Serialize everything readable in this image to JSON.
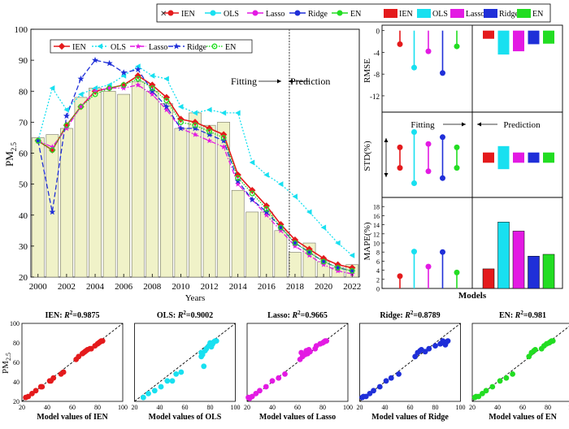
{
  "colors": {
    "IEN": "#e41a1c",
    "OLS": "#18e0f0",
    "Lasso": "#e31ae3",
    "Ridge": "#1f2fd8",
    "EN": "#22dd22",
    "bar_fill": "#f0f2c8",
    "bar_stroke": "#777766",
    "vline": "#555555"
  },
  "top_legend": {
    "line_labels": [
      "IEN",
      "OLS",
      "Lasso",
      "Ridge",
      "EN"
    ],
    "bar_labels": [
      "IEN",
      "OLS",
      "Lasso",
      "Ridge",
      "EN"
    ],
    "close_icon": "close-icon"
  },
  "chart_data": [
    {
      "id": "main",
      "type": "line",
      "xlabel": "Years",
      "ylabel_main": "PM",
      "ylabel_sub": "2.5",
      "xlim": [
        1999.5,
        2022.5
      ],
      "ylim": [
        20,
        100
      ],
      "yticks": [
        20,
        30,
        40,
        50,
        60,
        70,
        80,
        90,
        100
      ],
      "xticks": [
        2000,
        2002,
        2004,
        2006,
        2008,
        2010,
        2012,
        2014,
        2016,
        2018,
        2020,
        2022
      ],
      "split_year": 2017.6,
      "fitting_label": "Fitting",
      "prediction_label": "Prediction",
      "legend": [
        "IEN",
        "OLS",
        "Lasso",
        "Ridge",
        "EN"
      ],
      "x": [
        2000,
        2001,
        2002,
        2003,
        2004,
        2005,
        2006,
        2007,
        2008,
        2009,
        2010,
        2011,
        2012,
        2013,
        2014,
        2015,
        2016,
        2017,
        2018,
        2019,
        2020,
        2021,
        2022
      ],
      "bars": [
        65,
        66,
        68,
        78,
        81,
        80,
        79,
        83,
        80,
        76,
        68,
        73,
        69,
        70,
        48,
        41,
        41,
        35,
        28,
        31,
        25,
        23,
        24
      ],
      "series": [
        {
          "name": "IEN",
          "values": [
            64,
            61,
            69,
            75,
            80,
            81,
            82,
            85,
            82,
            78,
            71,
            70,
            68,
            66,
            53,
            48,
            43,
            37,
            32,
            29,
            26,
            24,
            23
          ]
        },
        {
          "name": "OLS",
          "values": [
            64,
            81,
            74,
            79,
            81,
            82,
            85,
            88,
            85,
            84,
            75,
            73,
            74,
            73,
            73,
            57,
            53,
            50,
            46,
            41,
            36,
            31,
            27
          ]
        },
        {
          "name": "Lasso",
          "values": [
            64,
            62,
            68,
            75,
            80,
            81,
            81,
            82,
            79,
            74,
            68,
            66,
            64,
            62,
            50,
            45,
            40,
            35,
            30,
            27,
            24,
            22,
            21
          ]
        },
        {
          "name": "Ridge",
          "values": [
            64,
            41,
            72,
            84,
            90,
            89,
            86,
            87,
            80,
            75,
            68,
            68,
            66,
            64,
            51,
            45,
            41,
            36,
            31,
            28,
            25,
            23,
            22
          ]
        },
        {
          "name": "EN",
          "values": [
            64,
            61,
            69,
            75,
            79,
            81,
            82,
            84,
            81,
            77,
            70,
            69,
            67,
            65,
            52,
            47,
            42,
            36,
            31,
            28,
            25,
            23,
            22
          ]
        }
      ]
    },
    {
      "id": "rmse",
      "type": "bar",
      "ylabel": "RMSE",
      "ylim": [
        -15,
        1
      ],
      "yticks": [
        -12,
        -8,
        -4,
        0
      ],
      "fitting_stems": [
        {
          "name": "IEN",
          "value": -2.5
        },
        {
          "name": "OLS",
          "value": -6.8
        },
        {
          "name": "Lasso",
          "value": -3.8
        },
        {
          "name": "Ridge",
          "value": -7.8
        },
        {
          "name": "EN",
          "value": -2.9
        }
      ],
      "prediction_bars": [
        {
          "name": "IEN",
          "value": -1.5
        },
        {
          "name": "OLS",
          "value": -4.4
        },
        {
          "name": "Lasso",
          "value": -3.8
        },
        {
          "name": "Ridge",
          "value": -2.5
        },
        {
          "name": "EN",
          "value": -2.4
        }
      ]
    },
    {
      "id": "std",
      "type": "bar",
      "ylabel": "STD(%)",
      "fitting_label": "Fitting",
      "prediction_label": "Prediction",
      "fitting_ranges": [
        {
          "name": "IEN",
          "low": -0.6,
          "high": 0.6
        },
        {
          "name": "OLS",
          "low": -1.5,
          "high": 1.5
        },
        {
          "name": "Lasso",
          "low": -0.8,
          "high": 0.8
        },
        {
          "name": "Ridge",
          "low": -1.2,
          "high": 1.2
        },
        {
          "name": "EN",
          "low": -0.6,
          "high": 0.6
        }
      ],
      "prediction_ranges": [
        {
          "name": "IEN",
          "low": -0.4,
          "high": 0.4
        },
        {
          "name": "OLS",
          "low": -0.9,
          "high": 0.9
        },
        {
          "name": "Lasso",
          "low": -0.4,
          "high": 0.4
        },
        {
          "name": "Ridge",
          "low": -0.4,
          "high": 0.4
        },
        {
          "name": "EN",
          "low": -0.4,
          "high": 0.4
        }
      ]
    },
    {
      "id": "mape",
      "type": "bar",
      "ylabel": "MAPE(%)",
      "xlabel": "Models",
      "ylim": [
        0,
        20
      ],
      "yticks": [
        0,
        2,
        4,
        6,
        8,
        10,
        12,
        14,
        16,
        18
      ],
      "fitting_stems": [
        {
          "name": "IEN",
          "value": 2.7
        },
        {
          "name": "OLS",
          "value": 8.1
        },
        {
          "name": "Lasso",
          "value": 4.8
        },
        {
          "name": "Ridge",
          "value": 8.0
        },
        {
          "name": "EN",
          "value": 3.5
        }
      ],
      "prediction_bars": [
        {
          "name": "IEN",
          "value": 4.3
        },
        {
          "name": "OLS",
          "value": 14.6
        },
        {
          "name": "Lasso",
          "value": 12.6
        },
        {
          "name": "Ridge",
          "value": 7.1
        },
        {
          "name": "EN",
          "value": 7.5
        }
      ]
    },
    {
      "id": "scatter",
      "type": "scatter",
      "ylabel_main": "PM",
      "ylabel_sub": "2.5",
      "xlim": [
        20,
        100
      ],
      "ylim": [
        20,
        100
      ],
      "xticks": [
        20,
        40,
        60,
        80,
        100
      ],
      "yticks": [
        20,
        40,
        60,
        80,
        100
      ],
      "panels": [
        {
          "model": "IEN",
          "prefix": "IEN: ",
          "r2_value": "=0.9875",
          "xlabel": "Model values of IEN",
          "x": [
            23,
            25,
            28,
            31,
            35,
            36,
            42,
            43,
            45,
            51,
            53,
            63,
            65,
            68,
            69,
            70,
            71,
            72,
            74,
            75,
            78,
            80,
            81,
            82,
            83,
            84
          ],
          "y": [
            24,
            25,
            28,
            31,
            35,
            35,
            41,
            41,
            44,
            48,
            50,
            63,
            66,
            69,
            70,
            71,
            72,
            73,
            74,
            74,
            77,
            79,
            80,
            81,
            82,
            82
          ]
        },
        {
          "model": "OLS",
          "prefix": "OLS: ",
          "r2_value": "=0.9002",
          "xlabel": "Model values of OLS",
          "x": [
            27,
            31,
            36,
            41,
            46,
            50,
            53,
            57,
            73,
            73,
            74,
            75,
            76,
            77,
            79,
            80,
            81,
            82,
            83,
            84,
            85
          ],
          "y": [
            24,
            28,
            31,
            35,
            41,
            41,
            48,
            50,
            70,
            66,
            68,
            56,
            72,
            74,
            77,
            80,
            76,
            79,
            81,
            82,
            82
          ]
        },
        {
          "model": "Lasso",
          "prefix": "Lasso: ",
          "r2_value": "=0.9665",
          "xlabel": "Model values of Lasso",
          "x": [
            21,
            22,
            24,
            27,
            30,
            35,
            40,
            45,
            50,
            62,
            63,
            64,
            66,
            67,
            68,
            69,
            70,
            74,
            75,
            78,
            80,
            81,
            82,
            83
          ],
          "y": [
            24,
            23,
            25,
            28,
            31,
            35,
            41,
            44,
            48,
            63,
            70,
            66,
            68,
            72,
            69,
            73,
            71,
            74,
            77,
            79,
            80,
            81,
            82,
            82
          ]
        },
        {
          "model": "Ridge",
          "prefix": "Ridge: ",
          "r2_value": "=0.8789",
          "xlabel": "Model values of Ridge",
          "x": [
            22,
            23,
            25,
            28,
            31,
            36,
            41,
            45,
            51,
            64,
            66,
            68,
            69,
            72,
            75,
            80,
            84,
            86,
            87,
            88,
            89,
            90
          ],
          "y": [
            24,
            25,
            25,
            28,
            31,
            35,
            41,
            44,
            48,
            66,
            70,
            72,
            73,
            71,
            74,
            77,
            79,
            82,
            80,
            78,
            81,
            82
          ]
        },
        {
          "model": "EN",
          "prefix": "EN: ",
          "r2_value": "=0.981",
          "xlabel": "Model values of EN",
          "x": [
            22,
            23,
            25,
            28,
            31,
            36,
            42,
            47,
            52,
            65,
            67,
            69,
            70,
            75,
            77,
            79,
            81,
            82,
            83,
            84
          ],
          "y": [
            24,
            25,
            25,
            28,
            31,
            35,
            41,
            44,
            48,
            66,
            70,
            72,
            73,
            74,
            77,
            79,
            80,
            81,
            82,
            82
          ]
        }
      ]
    }
  ]
}
